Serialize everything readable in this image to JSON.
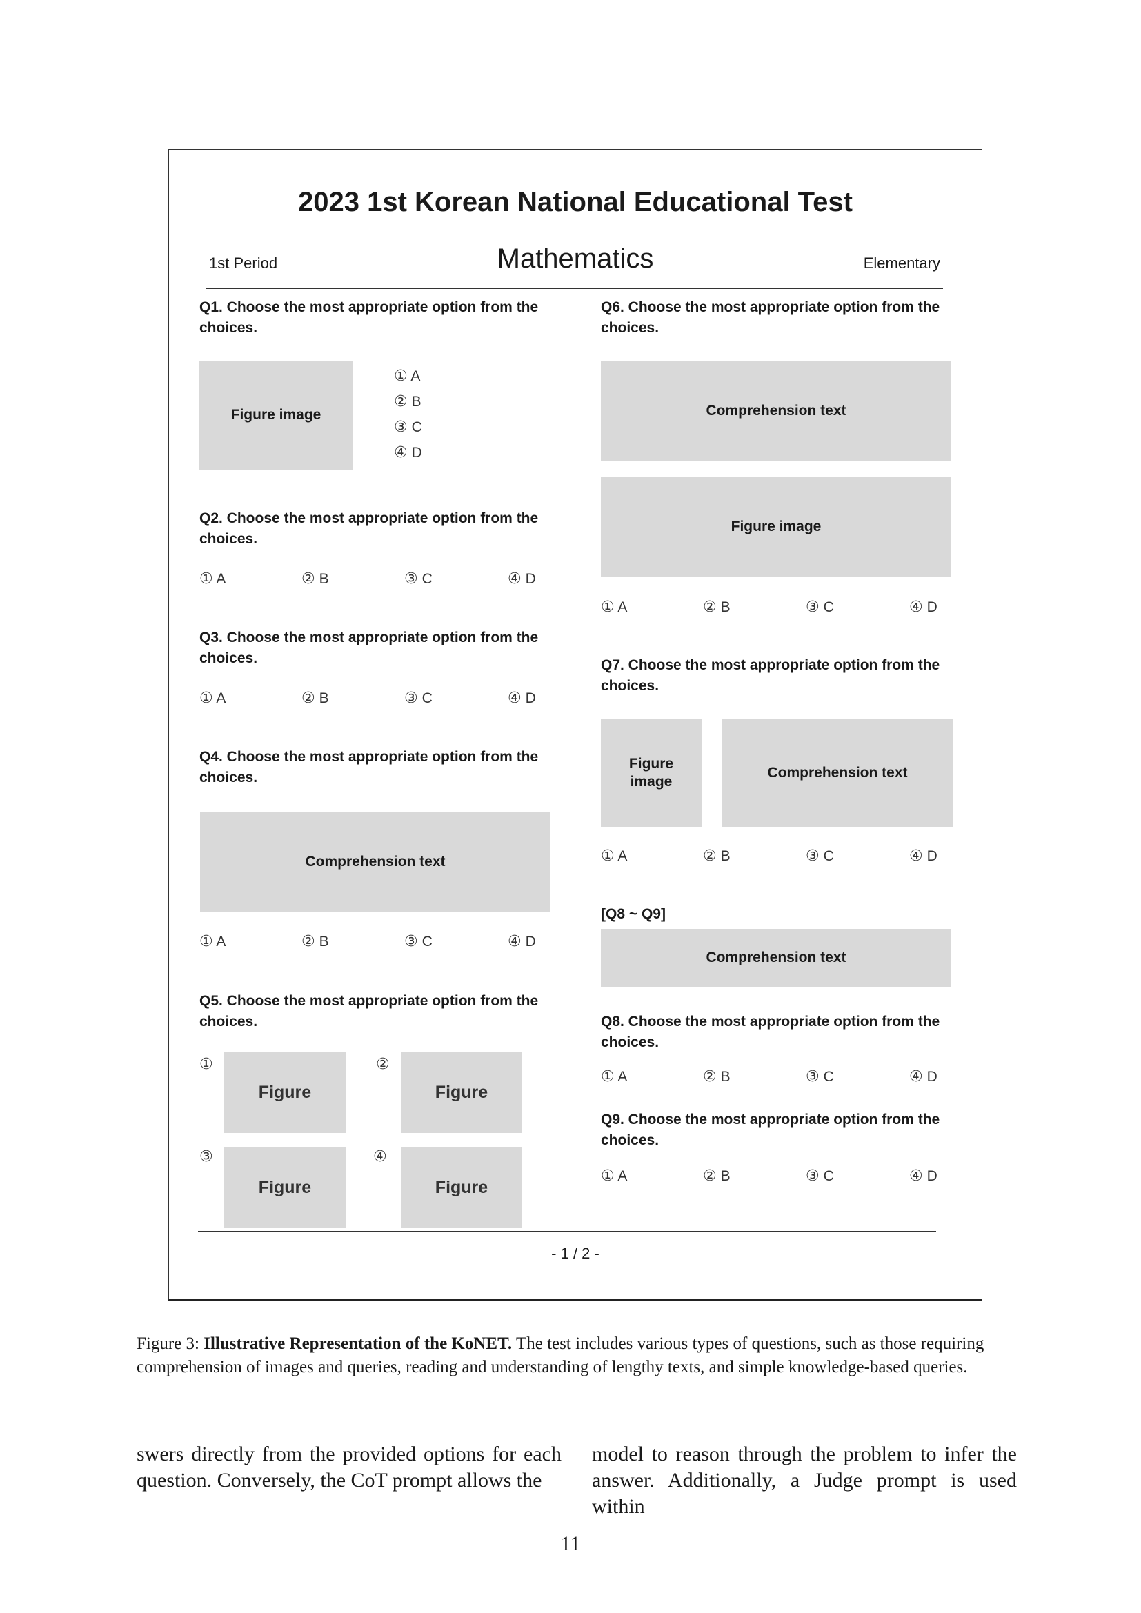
{
  "exam": {
    "title": "2023 1st  Korean National Educational Test",
    "period": "1st Period",
    "subject": "Mathematics",
    "level": "Elementary",
    "page": "- 1 / 2 -"
  },
  "labels": {
    "figure_image": "Figure image",
    "figure_image_l1": "Figure",
    "figure_image_l2": "image",
    "comprehension_text": "Comprehension text",
    "figure": "Figure",
    "group_q8_q9": "[Q8 ~ Q9]"
  },
  "marks": [
    "①",
    "②",
    "③",
    "④"
  ],
  "options": [
    "A",
    "B",
    "C",
    "D"
  ],
  "questions": {
    "q1": "Q1. Choose the most appropriate option from the choices.",
    "q2": "Q2. Choose the most appropriate option from the choices.",
    "q3": "Q3. Choose the most appropriate option from the choices.",
    "q4": "Q4. Choose the most appropriate option from the choices.",
    "q5": "Q5. Choose the most appropriate option from the choices.",
    "q6": "Q6. Choose the most appropriate option from the choices.",
    "q7": "Q7. Choose the most appropriate option from the choices.",
    "q8": "Q8. Choose the most appropriate option from the choices.",
    "q9": "Q9. Choose the most appropriate option from the choices."
  },
  "caption": {
    "prefix": "Figure 3: ",
    "title": "Illustrative Representation of the KoNET.",
    "text": " The test includes various types of questions, such as those requiring comprehension of images and queries, reading and understanding of lengthy texts, and simple knowledge-based queries."
  },
  "body": {
    "left": "swers directly from the provided options for each question. Conversely, the CoT prompt allows the",
    "right": "model to reason through the problem to infer the answer. Additionally, a Judge prompt is used within"
  },
  "page_number": "11"
}
